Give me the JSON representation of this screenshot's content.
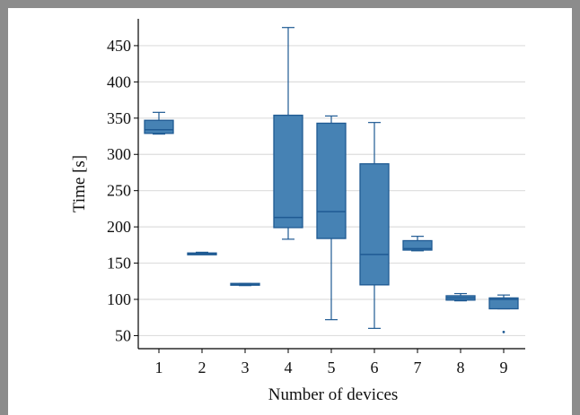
{
  "chart_data": {
    "type": "box",
    "xlabel": "Number of devices",
    "ylabel": "Time [s]",
    "categories": [
      "1",
      "2",
      "3",
      "4",
      "5",
      "6",
      "7",
      "8",
      "9"
    ],
    "yticks": [
      50,
      100,
      150,
      200,
      250,
      300,
      350,
      400,
      450
    ],
    "ylim": [
      32,
      487
    ],
    "grid": "horizontal",
    "colors": {
      "box_fill": "#4682b4",
      "box_stroke": "#1f5a93",
      "grid": "#dddddd",
      "axis": "#000000"
    },
    "boxes": [
      {
        "category": "1",
        "min": 328,
        "q1": 329,
        "median": 334,
        "q3": 347,
        "max": 358,
        "outliers": []
      },
      {
        "category": "2",
        "min": 162,
        "q1": 162,
        "median": 163,
        "q3": 164,
        "max": 165,
        "outliers": []
      },
      {
        "category": "3",
        "min": 119,
        "q1": 120,
        "median": 121,
        "q3": 122,
        "max": 122,
        "outliers": []
      },
      {
        "category": "4",
        "min": 183,
        "q1": 199,
        "median": 213,
        "q3": 354,
        "max": 475,
        "outliers": []
      },
      {
        "category": "5",
        "min": 72,
        "q1": 184,
        "median": 221,
        "q3": 343,
        "max": 353,
        "outliers": []
      },
      {
        "category": "6",
        "min": 60,
        "q1": 120,
        "median": 162,
        "q3": 287,
        "max": 344,
        "outliers": []
      },
      {
        "category": "7",
        "min": 167,
        "q1": 168,
        "median": 170,
        "q3": 181,
        "max": 187,
        "outliers": []
      },
      {
        "category": "8",
        "min": 98,
        "q1": 99,
        "median": 102,
        "q3": 105,
        "max": 108,
        "outliers": []
      },
      {
        "category": "9",
        "min": 87,
        "q1": 87,
        "median": 100,
        "q3": 102,
        "max": 106,
        "outliers": [
          55
        ]
      }
    ]
  }
}
